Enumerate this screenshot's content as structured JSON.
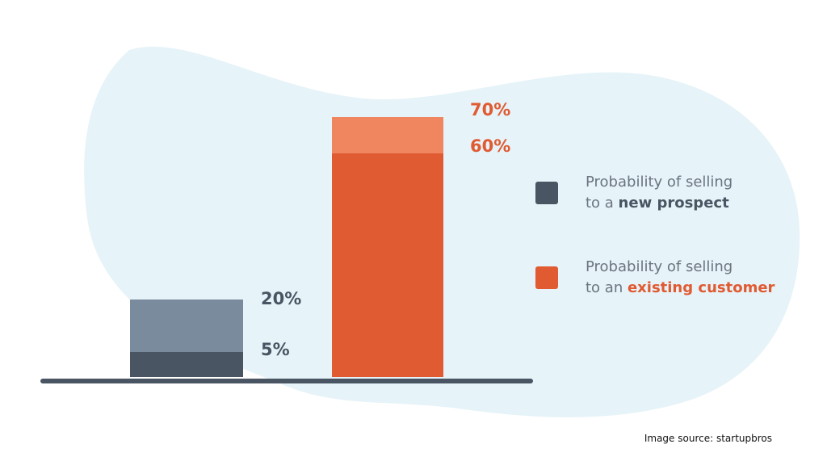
{
  "chart_data": {
    "type": "bar",
    "subtype": "range",
    "categories": [
      "new prospect",
      "existing customer"
    ],
    "series": [
      {
        "name": "Probability of selling to a new prospect",
        "low": 5,
        "high": 20,
        "labels": [
          "20%",
          "5%"
        ]
      },
      {
        "name": "Probability of selling to an existing customer",
        "low": 60,
        "high": 70,
        "labels": [
          "70%",
          "60%"
        ]
      }
    ],
    "ylim": [
      0,
      70
    ],
    "legend_position": "right"
  },
  "legend": [
    {
      "line1": "Probability of selling",
      "line2_prefix": "to a ",
      "line2_emph": "new prospect"
    },
    {
      "line1": "Probability of selling",
      "line2_prefix": "to an ",
      "line2_emph": "existing customer"
    }
  ],
  "source": "Image source: startupbros",
  "colors": {
    "blob": "#e6f3f8",
    "dark": "#4a5563",
    "grey": "#7b8b9e",
    "orange": "#e05a32",
    "orange_light": "#ef8660",
    "baseline": "#4a5563"
  }
}
